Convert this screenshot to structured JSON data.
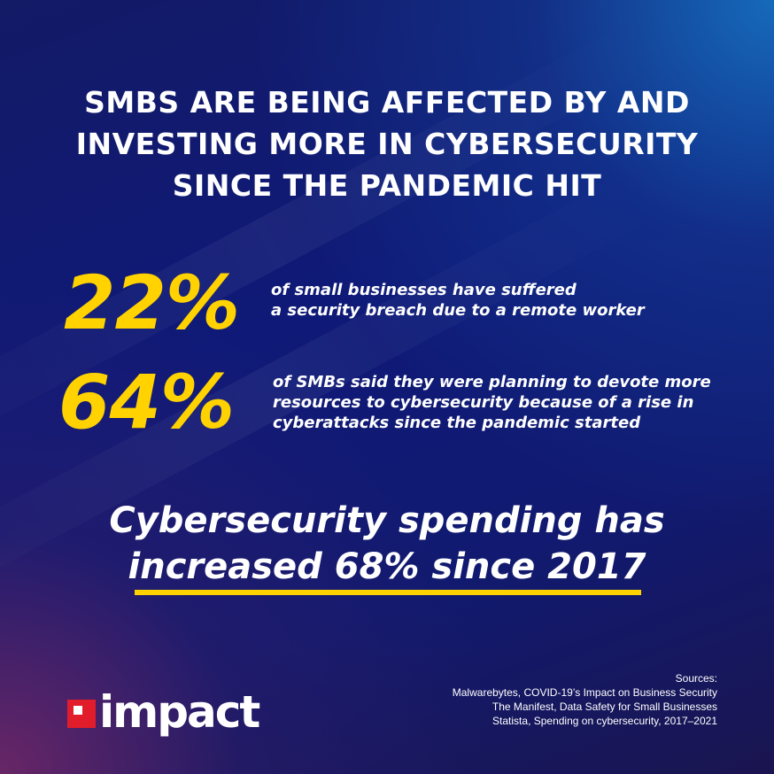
{
  "headline": {
    "lines": [
      "SMBS ARE BEING AFFECTED BY AND",
      "INVESTING MORE IN CYBERSECURITY",
      "SINCE THE PANDEMIC HIT"
    ]
  },
  "stats": [
    {
      "value": "22%",
      "lines": [
        "of small businesses have suffered",
        "a security breach due to a remote worker"
      ]
    },
    {
      "value": "64%",
      "lines": [
        "of SMBs said they were planning to devote more",
        "resources to cybersecurity because of a rise in",
        "cyberattacks since the pandemic started"
      ]
    }
  ],
  "tagline": {
    "lines": [
      "Cybersecurity spending has",
      "increased 68% since 2017"
    ]
  },
  "logo": {
    "text": "impact"
  },
  "sources": {
    "heading": "Sources:",
    "items": [
      "Malwarebytes, COVID-19’s Impact on Business Security",
      "The Manifest, Data Safety for Small Businesses",
      "Statista, Spending on cybersecurity, 2017–2021"
    ]
  },
  "colors": {
    "accent": "#ffd200",
    "background": "#111a70",
    "logo_mark": "#e21d2b",
    "text": "#ffffff"
  }
}
